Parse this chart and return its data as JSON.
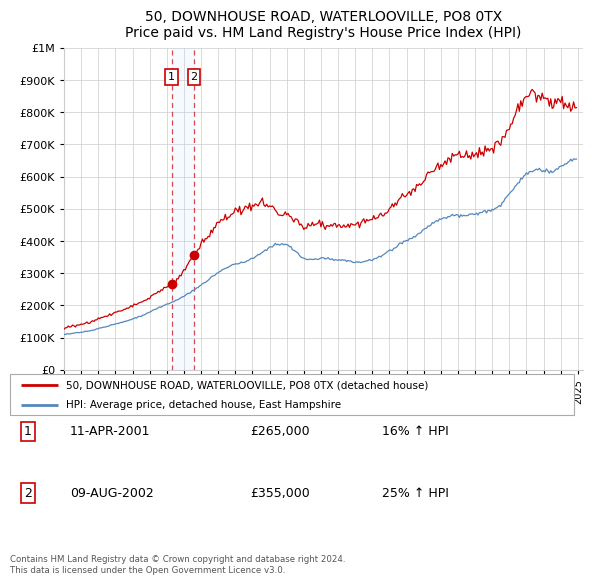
{
  "title": "50, DOWNHOUSE ROAD, WATERLOOVILLE, PO8 0TX",
  "subtitle": "Price paid vs. HM Land Registry's House Price Index (HPI)",
  "legend_line1": "50, DOWNHOUSE ROAD, WATERLOOVILLE, PO8 0TX (detached house)",
  "legend_line2": "HPI: Average price, detached house, East Hampshire",
  "transaction1_date": "11-APR-2001",
  "transaction1_price": "£265,000",
  "transaction1_hpi": "16% ↑ HPI",
  "transaction2_date": "09-AUG-2002",
  "transaction2_price": "£355,000",
  "transaction2_hpi": "25% ↑ HPI",
  "footer": "Contains HM Land Registry data © Crown copyright and database right 2024.\nThis data is licensed under the Open Government Licence v3.0.",
  "line1_color": "#cc0000",
  "line2_color": "#5588bb",
  "marker1_x": 2001.278,
  "marker1_y": 265000,
  "marker2_x": 2002.6,
  "marker2_y": 355000,
  "ylim": [
    0,
    1000000
  ],
  "xlim": [
    1995.0,
    2025.3
  ],
  "background_color": "#ffffff",
  "grid_color": "#cccccc",
  "title_fontsize": 11,
  "subtitle_fontsize": 9.5
}
